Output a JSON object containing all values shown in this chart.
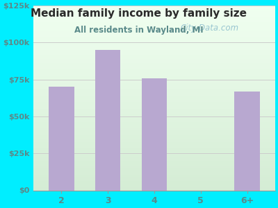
{
  "title": "Median family income by family size",
  "subtitle": "All residents in Wayland, MI",
  "categories": [
    "2",
    "3",
    "4",
    "5",
    "6+"
  ],
  "values": [
    70000,
    95000,
    76000,
    0,
    67000
  ],
  "bar_color": "#b8a8d0",
  "title_color": "#2a2a2a",
  "subtitle_color": "#5a8a8a",
  "tick_color": "#5a8a8a",
  "bg_color": "#00EEFF",
  "plot_bg_top": "#f0fff0",
  "plot_bg_bottom": "#d4ecd4",
  "ylim": [
    0,
    125000
  ],
  "yticks": [
    0,
    25000,
    50000,
    75000,
    100000,
    125000
  ],
  "ytick_labels": [
    "$0",
    "$25k",
    "$50k",
    "$75k",
    "$100k",
    "$125k"
  ],
  "watermark": "City-Data.com",
  "watermark_color": "#8bbccc"
}
